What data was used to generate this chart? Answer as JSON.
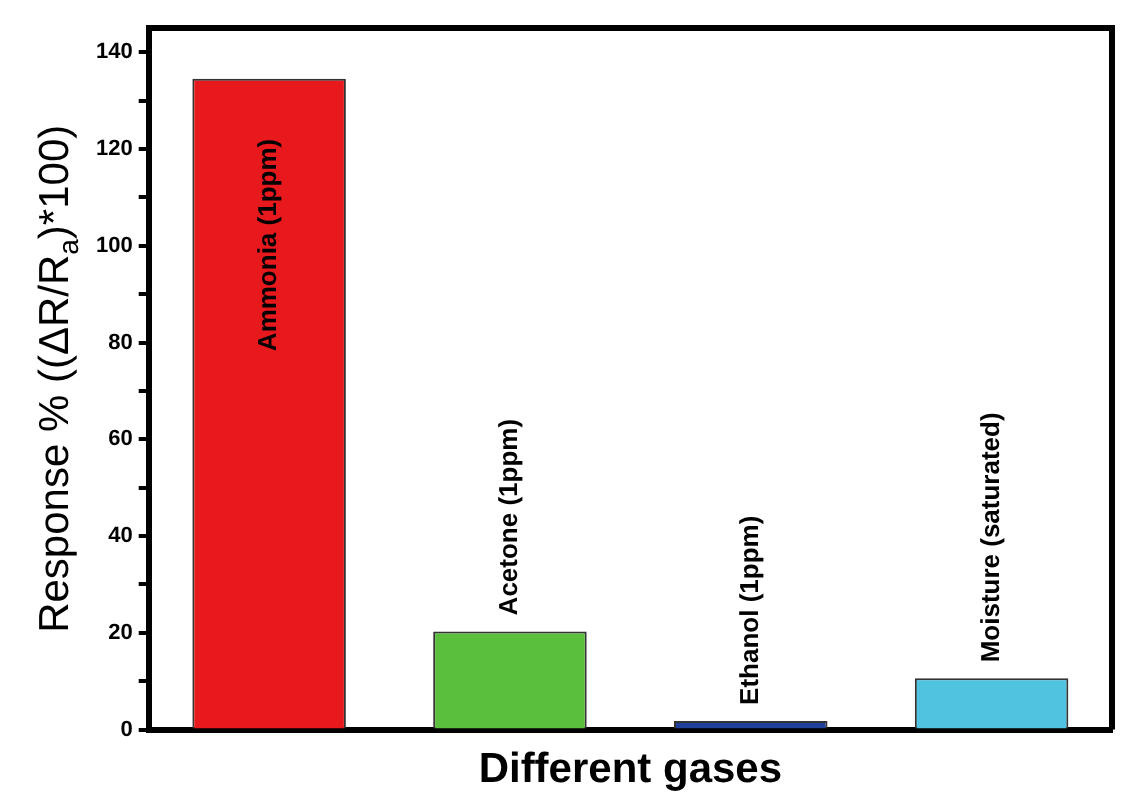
{
  "chart_data": {
    "type": "bar",
    "xlabel": "Different gases",
    "ylabel": "Response % ((ΔR/R$_{a}$)*100)",
    "categories": [
      "Ammonia (1ppm)",
      "Acetone (1ppm)",
      "Ethanol (1ppm)",
      "Moisture (saturated)"
    ],
    "values": [
      134.5,
      20.3,
      1.8,
      10.6
    ],
    "colors": [
      "#e8191d",
      "#5bbf3e",
      "#1f3f9a",
      "#4fc3e0"
    ],
    "ylim": [
      0,
      145
    ],
    "yticks": [
      0,
      {
        "value": 10,
        "label": null
      },
      20,
      {
        "value": 30,
        "label": null
      },
      40,
      {
        "value": 50,
        "label": null
      },
      60,
      {
        "value": 70,
        "label": null
      },
      80,
      {
        "value": 90,
        "label": null
      },
      100,
      {
        "value": 110,
        "label": null
      },
      120,
      {
        "value": 130,
        "label": null
      },
      140
    ],
    "grid": false,
    "legend": false
  }
}
